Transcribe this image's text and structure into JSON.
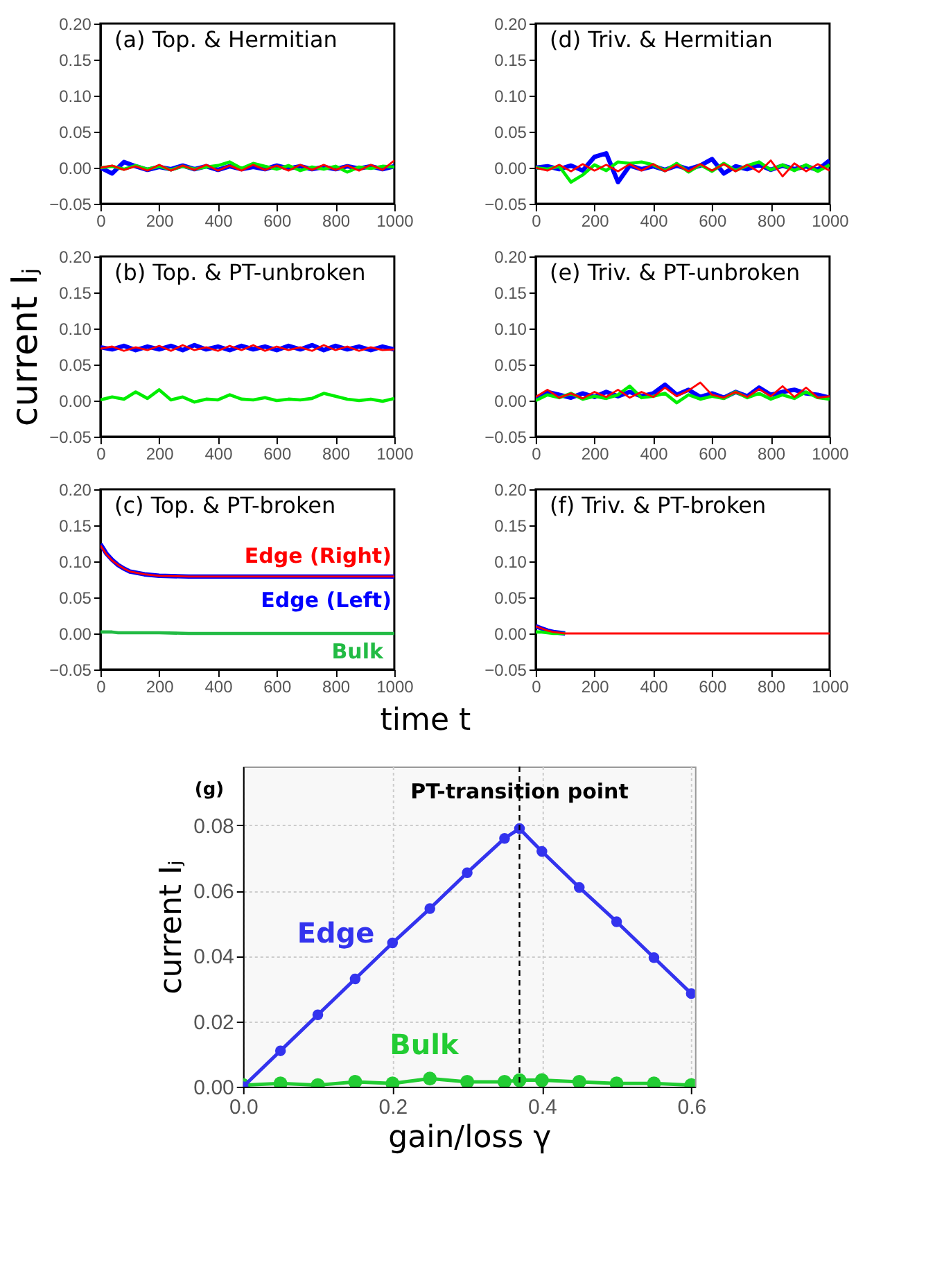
{
  "chart_data": [
    {
      "type": "line",
      "title": "(a) Top. & Hermitian",
      "x": [
        0,
        40,
        80,
        120,
        160,
        200,
        240,
        280,
        320,
        360,
        400,
        440,
        480,
        520,
        560,
        600,
        640,
        680,
        720,
        760,
        800,
        840,
        880,
        920,
        960,
        1000
      ],
      "series": [
        {
          "color": "#0000ff",
          "values": [
            0,
            -0.008,
            0.008,
            0.002,
            -0.003,
            0.001,
            -0.002,
            0.003,
            -0.002,
            0.002,
            -0.003,
            0.002,
            -0.002,
            0.001,
            -0.002,
            0.003,
            -0.001,
            0.002,
            -0.002,
            0.001,
            -0.002,
            0.002,
            -0.001,
            0.002,
            -0.002,
            0.002
          ]
        },
        {
          "color": "#00ee00",
          "values": [
            0,
            0.002,
            -0.002,
            0.003,
            -0.002,
            0.002,
            -0.003,
            0.002,
            -0.002,
            0.001,
            0.003,
            0.008,
            -0.001,
            0.006,
            0.002,
            -0.002,
            0.003,
            -0.004,
            0.001,
            -0.002,
            0.002,
            -0.006,
            0.001,
            -0.001,
            0.002,
            0.001
          ]
        },
        {
          "color": "#ff0000",
          "values": [
            0,
            0.003,
            -0.003,
            0.002,
            -0.004,
            0.004,
            -0.004,
            0.003,
            -0.003,
            0.004,
            -0.004,
            0.003,
            -0.004,
            0.004,
            -0.003,
            0.003,
            -0.004,
            0.004,
            -0.003,
            0.004,
            -0.003,
            0.003,
            -0.004,
            0.004,
            -0.003,
            0.01
          ]
        }
      ],
      "xlim": [
        0,
        1000
      ],
      "ylim": [
        -0.05,
        0.2
      ],
      "xticks": [
        0,
        200,
        400,
        600,
        800,
        1000
      ],
      "yticks": [
        {
          "value": -0.05,
          "label": "−0.05"
        },
        {
          "value": 0,
          "label": "0.00"
        },
        {
          "value": 0.05,
          "label": "0.05"
        },
        {
          "value": 0.1,
          "label": "0.10"
        },
        {
          "value": 0.15,
          "label": "0.15"
        },
        {
          "value": 0.2,
          "label": "0.20"
        }
      ]
    },
    {
      "type": "line",
      "title": "(b) Top. & PT-unbroken",
      "ylabel": "current  Iⱼ",
      "x": [
        0,
        40,
        80,
        120,
        160,
        200,
        240,
        280,
        320,
        360,
        400,
        440,
        480,
        520,
        560,
        600,
        640,
        680,
        720,
        760,
        800,
        840,
        880,
        920,
        960,
        1000
      ],
      "series": [
        {
          "color": "#0000ff",
          "values": [
            0.074,
            0.071,
            0.076,
            0.07,
            0.075,
            0.071,
            0.076,
            0.07,
            0.077,
            0.071,
            0.075,
            0.07,
            0.076,
            0.071,
            0.075,
            0.07,
            0.076,
            0.071,
            0.077,
            0.07,
            0.076,
            0.071,
            0.075,
            0.07,
            0.075,
            0.071
          ]
        },
        {
          "color": "#00ee00",
          "values": [
            0.001,
            0.005,
            0.002,
            0.012,
            0.003,
            0.015,
            0.001,
            0.005,
            -0.002,
            0.002,
            0.001,
            0.008,
            0.002,
            0.001,
            0.004,
            0,
            0.002,
            0.001,
            0.003,
            0.01,
            0.006,
            0.002,
            0,
            0.002,
            -0.001,
            0.003
          ]
        },
        {
          "color": "#ff0000",
          "values": [
            0.072,
            0.075,
            0.069,
            0.074,
            0.07,
            0.076,
            0.069,
            0.077,
            0.07,
            0.074,
            0.069,
            0.076,
            0.07,
            0.077,
            0.069,
            0.075,
            0.07,
            0.074,
            0.069,
            0.077,
            0.07,
            0.075,
            0.069,
            0.074,
            0.07,
            0.071
          ]
        }
      ],
      "xlim": [
        0,
        1000
      ],
      "ylim": [
        -0.05,
        0.2
      ],
      "xticks": [
        0,
        200,
        400,
        600,
        800,
        1000
      ],
      "yticks": [
        {
          "value": -0.05,
          "label": "−0.05"
        },
        {
          "value": 0,
          "label": "0.00"
        },
        {
          "value": 0.05,
          "label": "0.05"
        },
        {
          "value": 0.1,
          "label": "0.10"
        },
        {
          "value": 0.15,
          "label": "0.15"
        },
        {
          "value": 0.2,
          "label": "0.20"
        }
      ]
    },
    {
      "type": "line",
      "title": "(c) Top. & PT-broken",
      "xlabel": "time  t",
      "x": [
        0,
        20,
        40,
        60,
        80,
        100,
        150,
        200,
        300,
        400,
        600,
        800,
        1000
      ],
      "series": [
        {
          "name": "Edge (Left)",
          "color": "#0000ff",
          "values": [
            0.124,
            0.111,
            0.102,
            0.095,
            0.09,
            0.086,
            0.082,
            0.08,
            0.079,
            0.079,
            0.079,
            0.079,
            0.079
          ]
        },
        {
          "name": "Bulk",
          "color": "#22bb44",
          "values": [
            0.002,
            0.002,
            0.002,
            0.001,
            0.001,
            0.001,
            0.001,
            0.001,
            0,
            0,
            0,
            0,
            0
          ]
        },
        {
          "name": "Edge (Right)",
          "color": "#ff0000",
          "values": [
            0.122,
            0.11,
            0.101,
            0.095,
            0.09,
            0.086,
            0.082,
            0.08,
            0.079,
            0.079,
            0.079,
            0.079,
            0.079
          ]
        }
      ],
      "xlim": [
        0,
        1000
      ],
      "ylim": [
        -0.05,
        0.2
      ],
      "xticks": [
        0,
        200,
        400,
        600,
        800,
        1000
      ],
      "yticks": [
        {
          "value": -0.05,
          "label": "−0.05"
        },
        {
          "value": 0,
          "label": "0.00"
        },
        {
          "value": 0.05,
          "label": "0.05"
        },
        {
          "value": 0.1,
          "label": "0.10"
        },
        {
          "value": 0.15,
          "label": "0.15"
        },
        {
          "value": 0.2,
          "label": "0.20"
        }
      ]
    },
    {
      "type": "line",
      "title": "(d) Triv. & Hermitian",
      "x": [
        0,
        40,
        80,
        120,
        160,
        200,
        240,
        280,
        320,
        360,
        400,
        440,
        480,
        520,
        560,
        600,
        640,
        680,
        720,
        760,
        800,
        840,
        880,
        920,
        960,
        1000
      ],
      "series": [
        {
          "color": "#0000ff",
          "values": [
            0,
            0.002,
            -0.002,
            0.003,
            -0.004,
            0.015,
            0.02,
            -0.02,
            0.003,
            -0.002,
            0.002,
            -0.003,
            0.003,
            -0.002,
            0.003,
            0.012,
            -0.008,
            0.002,
            -0.002,
            0.004,
            -0.003,
            0.003,
            -0.002,
            0.002,
            -0.003,
            0.01
          ]
        },
        {
          "color": "#00ee00",
          "values": [
            0,
            -0.002,
            0.002,
            -0.02,
            -0.01,
            0.004,
            -0.004,
            0.008,
            0.006,
            0.008,
            0.004,
            -0.004,
            0.006,
            -0.006,
            0.004,
            -0.005,
            0.006,
            -0.004,
            0.003,
            0.008,
            -0.003,
            0.004,
            -0.004,
            0.004,
            -0.005,
            0.004
          ]
        },
        {
          "color": "#ff0000",
          "values": [
            0,
            -0.004,
            0.004,
            -0.005,
            0.005,
            -0.004,
            0.004,
            -0.005,
            0.005,
            -0.004,
            0.005,
            -0.005,
            0.004,
            -0.005,
            0.005,
            -0.004,
            0.005,
            -0.005,
            0.004,
            -0.006,
            0.01,
            -0.012,
            0.006,
            -0.005,
            0.005,
            -0.004
          ]
        }
      ],
      "xlim": [
        0,
        1000
      ],
      "ylim": [
        -0.05,
        0.2
      ],
      "xticks": [
        0,
        200,
        400,
        600,
        800,
        1000
      ],
      "yticks": [
        {
          "value": -0.05,
          "label": "−0.05"
        },
        {
          "value": 0,
          "label": "0.00"
        },
        {
          "value": 0.05,
          "label": "0.05"
        },
        {
          "value": 0.1,
          "label": "0.10"
        },
        {
          "value": 0.15,
          "label": "0.15"
        },
        {
          "value": 0.2,
          "label": "0.20"
        }
      ]
    },
    {
      "type": "line",
      "title": "(e) Triv. & PT-unbroken",
      "x": [
        0,
        40,
        80,
        120,
        160,
        200,
        240,
        280,
        320,
        360,
        400,
        440,
        480,
        520,
        560,
        600,
        640,
        680,
        720,
        760,
        800,
        840,
        880,
        920,
        960,
        1000
      ],
      "series": [
        {
          "color": "#0000ff",
          "values": [
            0.003,
            0.012,
            0.008,
            0.004,
            0.01,
            0.005,
            0.012,
            0.006,
            0.012,
            0.006,
            0.01,
            0.022,
            0.008,
            0.015,
            0.005,
            0.01,
            0.004,
            0.012,
            0.006,
            0.018,
            0.008,
            0.012,
            0.015,
            0.01,
            0.008,
            0.004
          ]
        },
        {
          "color": "#00ee00",
          "values": [
            0,
            0.008,
            0.004,
            0.01,
            0.002,
            0.006,
            0.003,
            0.008,
            0.02,
            0.004,
            0.006,
            0.01,
            -0.003,
            0.008,
            0.002,
            0.006,
            0.003,
            0.012,
            0.004,
            0.01,
            0.002,
            0.008,
            0.003,
            0.012,
            0.004,
            0.002
          ]
        },
        {
          "color": "#ff0000",
          "values": [
            0.005,
            0.015,
            0.004,
            0.01,
            0.003,
            0.012,
            0.005,
            0.015,
            0.004,
            0.012,
            0.005,
            0.018,
            0.006,
            0.014,
            0.025,
            0.008,
            0.004,
            0.012,
            0.005,
            0.016,
            0.006,
            0.02,
            0.005,
            0.018,
            0.004,
            0.006
          ]
        }
      ],
      "xlim": [
        0,
        1000
      ],
      "ylim": [
        -0.05,
        0.2
      ],
      "xticks": [
        0,
        200,
        400,
        600,
        800,
        1000
      ],
      "yticks": [
        {
          "value": -0.05,
          "label": "−0.05"
        },
        {
          "value": 0,
          "label": "0.00"
        },
        {
          "value": 0.05,
          "label": "0.05"
        },
        {
          "value": 0.1,
          "label": "0.10"
        },
        {
          "value": 0.15,
          "label": "0.15"
        },
        {
          "value": 0.2,
          "label": "0.20"
        }
      ]
    },
    {
      "type": "line",
      "title": "(f) Triv. & PT-broken",
      "x": [
        0,
        20,
        40,
        60,
        80,
        100,
        150,
        200,
        300,
        400,
        600,
        800,
        1000
      ],
      "series": [
        {
          "color": "#0000ff",
          "values": [
            0.01,
            0.007,
            0.004,
            0.002,
            0.001,
            0,
            null,
            null,
            null,
            null,
            null,
            null,
            null
          ]
        },
        {
          "color": "#00ee00",
          "values": [
            0.002,
            0.002,
            0.001,
            0,
            0,
            0,
            null,
            null,
            null,
            null,
            null,
            null,
            null
          ]
        },
        {
          "color": "#ff0000",
          "values": [
            0.01,
            0.007,
            0.004,
            0.002,
            0.001,
            0,
            0,
            0,
            0,
            0,
            0,
            0,
            0
          ]
        }
      ],
      "xlim": [
        0,
        1000
      ],
      "ylim": [
        -0.05,
        0.2
      ],
      "xticks": [
        0,
        200,
        400,
        600,
        800,
        1000
      ],
      "yticks": [
        {
          "value": -0.05,
          "label": "−0.05"
        },
        {
          "value": 0,
          "label": "0.00"
        },
        {
          "value": 0.05,
          "label": "0.05"
        },
        {
          "value": 0.1,
          "label": "0.10"
        },
        {
          "value": 0.15,
          "label": "0.15"
        },
        {
          "value": 0.2,
          "label": "0.20"
        }
      ]
    },
    {
      "type": "line",
      "title": "(g)",
      "xlabel": "gain/loss  γ",
      "ylabel": "current  Iⱼ",
      "marker": "circle",
      "grid": true,
      "x": [
        0,
        0.05,
        0.1,
        0.15,
        0.2,
        0.25,
        0.3,
        0.35,
        0.37,
        0.4,
        0.45,
        0.5,
        0.55,
        0.6
      ],
      "series": [
        {
          "name": "Bulk",
          "color": "#22cc33",
          "values": [
            0.0005,
            0.001,
            0.0005,
            0.0015,
            0.001,
            0.0025,
            0.0015,
            0.0015,
            0.002,
            0.002,
            0.0015,
            0.001,
            0.001,
            0.0005
          ]
        },
        {
          "name": "Edge",
          "color": "#3333ee",
          "values": [
            0,
            0.011,
            0.022,
            0.033,
            0.044,
            0.0545,
            0.0655,
            0.076,
            0.079,
            0.072,
            0.061,
            0.0505,
            0.0395,
            0.0285
          ]
        }
      ],
      "ref_lines": [
        {
          "axis": "x",
          "value": 0.37,
          "label": "PT-transition point",
          "color": "#000000",
          "line_style": "dashed"
        }
      ],
      "xlim": [
        0,
        0.605
      ],
      "ylim": [
        0,
        0.098
      ],
      "xticks": [
        {
          "value": 0,
          "label": "0.0"
        },
        {
          "value": 0.2,
          "label": "0.2"
        },
        {
          "value": 0.4,
          "label": "0.4"
        },
        {
          "value": 0.6,
          "label": "0.6"
        }
      ],
      "yticks": [
        {
          "value": 0,
          "label": "0.00"
        },
        {
          "value": 0.02,
          "label": "0.02"
        },
        {
          "value": 0.04,
          "label": "0.04"
        },
        {
          "value": 0.06,
          "label": "0.06"
        },
        {
          "value": 0.08,
          "label": "0.08"
        }
      ]
    }
  ]
}
